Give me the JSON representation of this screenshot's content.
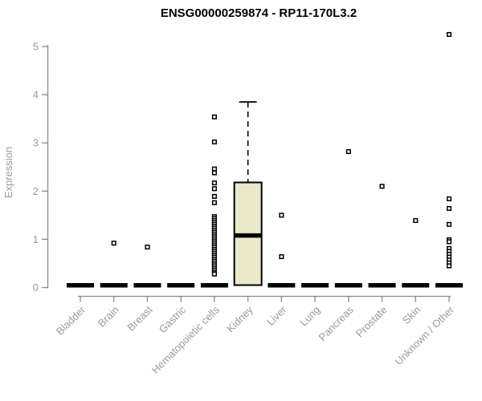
{
  "chart_data": {
    "type": "boxplot",
    "title": "ENSG00000259874 - RP11-170L3.2",
    "ylabel": "Expression",
    "xlabel": "",
    "ylim": [
      0,
      5.4
    ],
    "yticks": [
      0,
      1,
      2,
      3,
      4,
      5
    ],
    "grid": false,
    "legend": false,
    "categories": [
      "Bladder",
      "Brain",
      "Breast",
      "Gastric",
      "Hematopoietic cells",
      "Kidney",
      "Liver",
      "Lung",
      "Pancreas",
      "Prostate",
      "Skin",
      "Unknown / Other"
    ],
    "boxes": [
      {
        "category": "Bladder",
        "median": 0,
        "q1": 0,
        "q3": 0,
        "whisker_low": 0,
        "whisker_high": 0,
        "outliers": []
      },
      {
        "category": "Brain",
        "median": 0,
        "q1": 0,
        "q3": 0,
        "whisker_low": 0,
        "whisker_high": 0,
        "outliers": [
          0.92
        ]
      },
      {
        "category": "Breast",
        "median": 0,
        "q1": 0,
        "q3": 0,
        "whisker_low": 0,
        "whisker_high": 0,
        "outliers": [
          0.84
        ]
      },
      {
        "category": "Gastric",
        "median": 0,
        "q1": 0,
        "q3": 0,
        "whisker_low": 0,
        "whisker_high": 0,
        "outliers": []
      },
      {
        "category": "Hematopoietic cells",
        "median": 0,
        "q1": 0,
        "q3": 0,
        "whisker_low": 0,
        "whisker_high": 0,
        "outliers": [
          3.54,
          3.02,
          2.46,
          2.38,
          2.17,
          2.05,
          1.89,
          1.76,
          1.47,
          1.43,
          1.39,
          1.35,
          1.31,
          1.27,
          1.23,
          1.19,
          1.15,
          1.11,
          1.07,
          1.03,
          0.99,
          0.95,
          0.91,
          0.87,
          0.83,
          0.79,
          0.75,
          0.71,
          0.67,
          0.63,
          0.59,
          0.55,
          0.51,
          0.47,
          0.43,
          0.39,
          0.35,
          0.31,
          0.28
        ]
      },
      {
        "category": "Kidney",
        "median": 1.08,
        "q1": 0.05,
        "q3": 2.18,
        "whisker_low": 0.05,
        "whisker_high": 3.85,
        "outliers": []
      },
      {
        "category": "Liver",
        "median": 0,
        "q1": 0,
        "q3": 0,
        "whisker_low": 0,
        "whisker_high": 0,
        "outliers": [
          1.5,
          0.64
        ]
      },
      {
        "category": "Lung",
        "median": 0,
        "q1": 0,
        "q3": 0,
        "whisker_low": 0,
        "whisker_high": 0,
        "outliers": []
      },
      {
        "category": "Pancreas",
        "median": 0,
        "q1": 0,
        "q3": 0,
        "whisker_low": 0,
        "whisker_high": 0,
        "outliers": [
          2.82
        ]
      },
      {
        "category": "Prostate",
        "median": 0,
        "q1": 0,
        "q3": 0,
        "whisker_low": 0,
        "whisker_high": 0,
        "outliers": [
          2.1
        ]
      },
      {
        "category": "Skin",
        "median": 0,
        "q1": 0,
        "q3": 0,
        "whisker_low": 0,
        "whisker_high": 0,
        "outliers": [
          1.39
        ]
      },
      {
        "category": "Unknown / Other",
        "median": 0,
        "q1": 0,
        "q3": 0,
        "whisker_low": 0,
        "whisker_high": 0,
        "outliers": [
          5.25,
          1.84,
          1.64,
          1.31,
          0.99,
          0.95,
          0.81,
          0.75,
          0.69,
          0.63,
          0.57,
          0.51,
          0.45
        ]
      }
    ],
    "colors": {
      "box_fill": "#ece8cc",
      "box_stroke": "#000000",
      "median": "#000000",
      "whisker": "#000000",
      "outlier_fill": "#ffffff",
      "outlier_stroke": "#000000",
      "axis": "#8a8a8a",
      "tick_text": "#9b9b9b",
      "title_text": "#000000",
      "background": "#ffffff"
    }
  }
}
